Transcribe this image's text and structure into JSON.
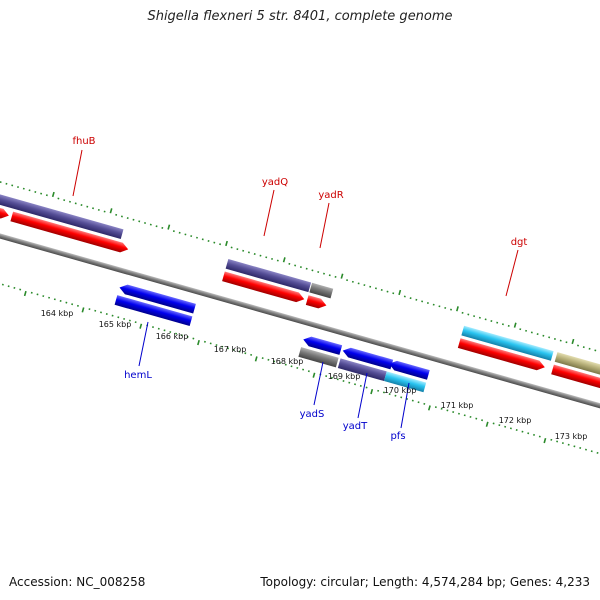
{
  "title": "Shigella flexneri 5 str. 8401, complete genome",
  "footer": {
    "accession": "Accession: NC_008258",
    "topology": "Topology: circular; Length: 4,574,284 bp; Genes: 4,233"
  },
  "colors": {
    "axis": "#7a7a7a",
    "tick": "#2a8a2a",
    "top_label": "#cc0000",
    "bottom_label": "#0000cc",
    "purple": "#554e96",
    "red": "#ff0000",
    "blue": "#0000ee",
    "cyan": "#29c4f0",
    "gray": "#777777",
    "olive": "#b7b079"
  },
  "axis_labels": [
    "164 kbp",
    "165 kbp",
    "166 kbp",
    "167 kbp",
    "168 kbp",
    "169 kbp",
    "170 kbp",
    "171 kbp",
    "172 kbp",
    "173 kbp"
  ],
  "gene_labels": {
    "fhuB": "fhuB",
    "yadQ": "yadQ",
    "yadR": "yadR",
    "dgt": "dgt",
    "hemL": "hemL",
    "yadS": "yadS",
    "yadT": "yadT",
    "pfs": "pfs"
  }
}
